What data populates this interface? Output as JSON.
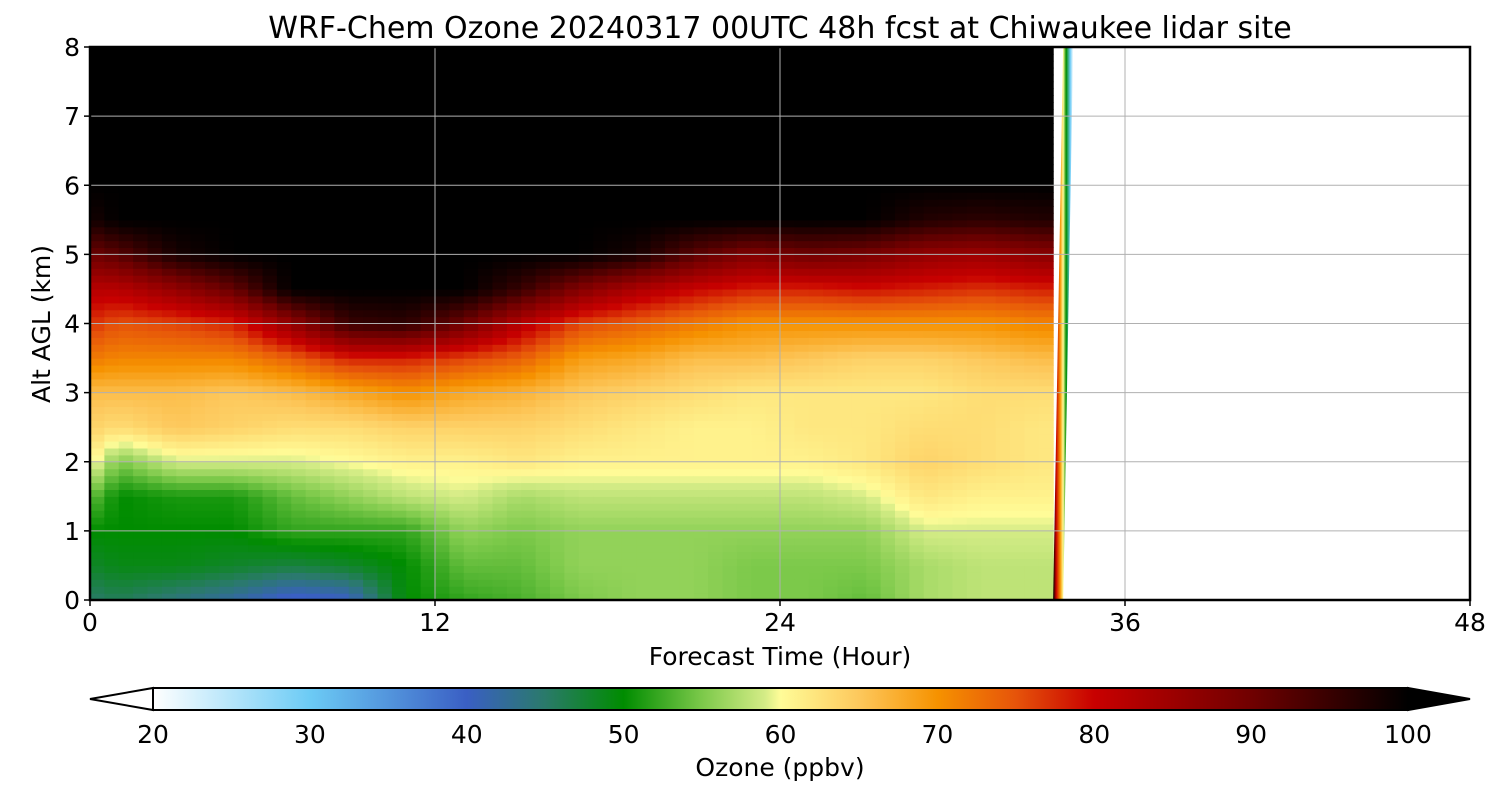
{
  "chart_data": {
    "type": "heatmap",
    "title": "WRF-Chem Ozone  20240317 00UTC 48h fcst at Chiwaukee lidar site",
    "xlabel": "Forecast Time (Hour)",
    "ylabel": "Alt AGL (km)",
    "xlim": [
      0,
      48
    ],
    "ylim": [
      0,
      8
    ],
    "xticks": [
      "0",
      "12",
      "24",
      "36",
      "48"
    ],
    "yticks": [
      "0",
      "1",
      "2",
      "3",
      "4",
      "5",
      "6",
      "7",
      "8"
    ],
    "grid": true,
    "data_end_hour": 33.5,
    "colorbar": {
      "label": "Ozone  (ppbv)",
      "range": [
        20,
        100
      ],
      "ticks": [
        "20",
        "30",
        "40",
        "50",
        "60",
        "70",
        "80",
        "90",
        "100"
      ],
      "extend": "both",
      "stops": [
        {
          "value": 20,
          "color": "#ffffff"
        },
        {
          "value": 30,
          "color": "#6ccbf5"
        },
        {
          "value": 40,
          "color": "#3a5fc4"
        },
        {
          "value": 45,
          "color": "#2a7a6a"
        },
        {
          "value": 50,
          "color": "#008c00"
        },
        {
          "value": 55,
          "color": "#7cc94a"
        },
        {
          "value": 59,
          "color": "#d4ec86"
        },
        {
          "value": 60,
          "color": "#fffc98"
        },
        {
          "value": 65,
          "color": "#fdc85c"
        },
        {
          "value": 70,
          "color": "#f69200"
        },
        {
          "value": 75,
          "color": "#e6540a"
        },
        {
          "value": 80,
          "color": "#c80000"
        },
        {
          "value": 90,
          "color": "#700000"
        },
        {
          "value": 100,
          "color": "#000000"
        }
      ]
    },
    "ozone_profiles_ppbv": {
      "altitudes_km": [
        0,
        0.5,
        1,
        1.5,
        2,
        2.5,
        3,
        3.5,
        4,
        4.5,
        5,
        5.5,
        6,
        7,
        8
      ],
      "hours": [
        0,
        1,
        3,
        5,
        7,
        9,
        11,
        13,
        15,
        17,
        19,
        21,
        23,
        25,
        27,
        29,
        31,
        33
      ],
      "values": [
        [
          45,
          48,
          50,
          54,
          61,
          64,
          66,
          72,
          77,
          82,
          90,
          98,
          100,
          100,
          100
        ],
        [
          46,
          49,
          50,
          50,
          55,
          63,
          66,
          71,
          75,
          82,
          92,
          100,
          100,
          100,
          100
        ],
        [
          44,
          49,
          50,
          51,
          59,
          65,
          66,
          71,
          76,
          86,
          98,
          100,
          100,
          100,
          100
        ],
        [
          42,
          48,
          50,
          51,
          59,
          64,
          65,
          71,
          78,
          91,
          100,
          100,
          100,
          100,
          100
        ],
        [
          39,
          47,
          52,
          54,
          59,
          63,
          66,
          74,
          86,
          100,
          100,
          100,
          100,
          100,
          100
        ],
        [
          40,
          48,
          52,
          56,
          60,
          63,
          68,
          78,
          95,
          100,
          100,
          100,
          100,
          100,
          100
        ],
        [
          50,
          50,
          52,
          58,
          61,
          64,
          70,
          78,
          96,
          100,
          100,
          100,
          100,
          100,
          100
        ],
        [
          52,
          54,
          56,
          59,
          61,
          64,
          68,
          76,
          90,
          100,
          100,
          100,
          100,
          100,
          100
        ],
        [
          53,
          54,
          55,
          57,
          62,
          64,
          67,
          74,
          82,
          95,
          100,
          100,
          100,
          100,
          100
        ],
        [
          55,
          56,
          56,
          58,
          61,
          63,
          65,
          69,
          76,
          88,
          100,
          100,
          100,
          100,
          100
        ],
        [
          56,
          56,
          56,
          58,
          61,
          62,
          64,
          68,
          74,
          83,
          98,
          100,
          100,
          100,
          100
        ],
        [
          56,
          56,
          56,
          58,
          61,
          61,
          63,
          66,
          72,
          80,
          92,
          100,
          100,
          100,
          100
        ],
        [
          55,
          55,
          56,
          58,
          61,
          61,
          62,
          66,
          70,
          78,
          88,
          100,
          100,
          100,
          100
        ],
        [
          55,
          55,
          56,
          58,
          61,
          62,
          62,
          65,
          70,
          78,
          90,
          100,
          100,
          100,
          100
        ],
        [
          54,
          55,
          56,
          59,
          62,
          62,
          62,
          64,
          70,
          79,
          89,
          100,
          100,
          100,
          100
        ],
        [
          57,
          57,
          59,
          62,
          64,
          63,
          62,
          64,
          70,
          78,
          86,
          97,
          100,
          100,
          100
        ],
        [
          58,
          58,
          59,
          61,
          63,
          63,
          63,
          65,
          70,
          77,
          85,
          96,
          100,
          100,
          100
        ],
        [
          58,
          58,
          59,
          61,
          62,
          62,
          63,
          66,
          71,
          78,
          87,
          97,
          100,
          100,
          100
        ]
      ]
    }
  }
}
